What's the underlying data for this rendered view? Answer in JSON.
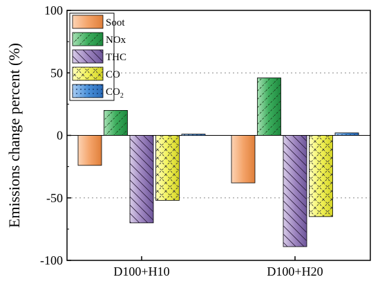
{
  "chart_data": {
    "type": "bar",
    "title": "",
    "xlabel": "",
    "ylabel": "Emissions change percent (%)",
    "ylim": [
      -100,
      100
    ],
    "yticks": [
      "100",
      "50",
      "0",
      "-50",
      "-100"
    ],
    "categories": [
      "D100+H10",
      "D100+H20"
    ],
    "gridlines_y": [
      50,
      -50
    ],
    "legend_position": "top-left",
    "series": [
      {
        "name": "Soot",
        "values": [
          -24,
          -38
        ],
        "color": "#F4A46A",
        "pattern": "none"
      },
      {
        "name": "NOx",
        "values": [
          20,
          46
        ],
        "color": "#3DAE5E",
        "pattern": "forward-diagonal"
      },
      {
        "name": "THC",
        "values": [
          -70,
          -89
        ],
        "color": "#9E86C0",
        "pattern": "back-diagonal"
      },
      {
        "name": "CO",
        "values": [
          -52,
          -65
        ],
        "color": "#F2F25A",
        "pattern": "cross-hatch"
      },
      {
        "name": "CO",
        "subscript": "2",
        "values": [
          1,
          2
        ],
        "color": "#4A90D9",
        "pattern": "dots"
      }
    ]
  }
}
